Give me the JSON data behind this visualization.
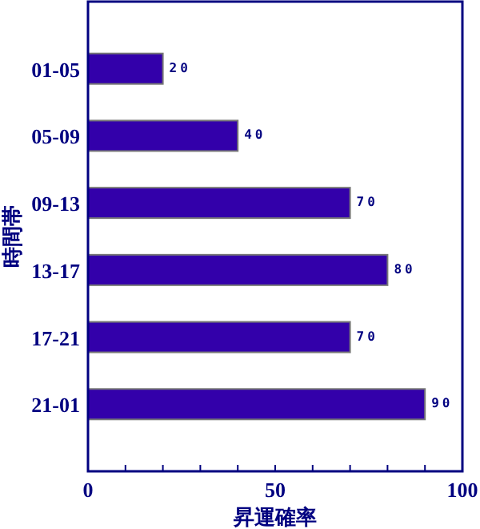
{
  "chart_data": {
    "type": "bar",
    "orientation": "horizontal",
    "xlabel": "昇運確率",
    "ylabel": "時間帯",
    "categories": [
      "01-05",
      "05-09",
      "09-13",
      "13-17",
      "17-21",
      "21-01"
    ],
    "values": [
      20,
      40,
      70,
      80,
      70,
      90
    ],
    "color": "#3300aa",
    "data_labels": true,
    "xlim": [
      0,
      100
    ],
    "xticks": [
      0,
      {
        "value": 10,
        "label": null
      },
      {
        "value": 20,
        "label": null
      },
      {
        "value": 30,
        "label": null
      },
      {
        "value": 40,
        "label": null
      },
      50,
      {
        "value": 60,
        "label": null
      },
      {
        "value": 70,
        "label": null
      },
      {
        "value": 80,
        "label": null
      },
      {
        "value": 90,
        "label": null
      },
      100
    ]
  }
}
